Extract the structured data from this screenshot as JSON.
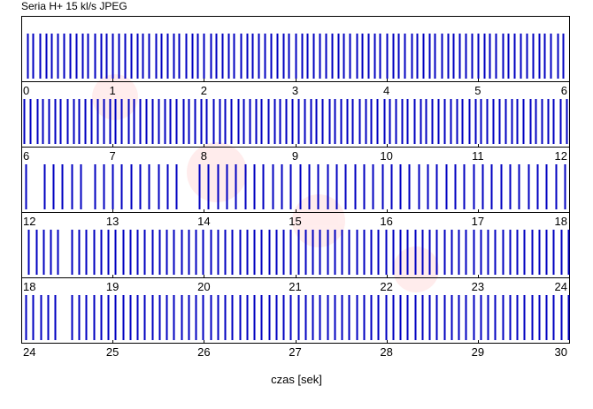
{
  "chart_data": {
    "type": "bar",
    "title": "Seria H+ 15 kl/s JPEG",
    "xlabel": "czas [sek]",
    "ylabel": "",
    "grid": false,
    "legend": "none",
    "color": "#0000c0",
    "rows": [
      {
        "xlim": [
          0,
          6
        ],
        "ticks": [
          0,
          1,
          2,
          3,
          4,
          5,
          6
        ],
        "frames": [
          0.07,
          0.13,
          0.2,
          0.27,
          0.33,
          0.4,
          0.47,
          0.53,
          0.6,
          0.67,
          0.73,
          0.8,
          0.87,
          0.93,
          1.0,
          1.07,
          1.13,
          1.2,
          1.27,
          1.33,
          1.4,
          1.47,
          1.53,
          1.6,
          1.67,
          1.73,
          1.8,
          1.87,
          1.93,
          2.0,
          2.07,
          2.13,
          2.2,
          2.27,
          2.33,
          2.4,
          2.47,
          2.53,
          2.6,
          2.67,
          2.73,
          2.8,
          2.87,
          2.93,
          3.0,
          3.07,
          3.13,
          3.2,
          3.27,
          3.33,
          3.4,
          3.47,
          3.53,
          3.6,
          3.67,
          3.73,
          3.8,
          3.87,
          3.93,
          4.0,
          4.07,
          4.13,
          4.2,
          4.27,
          4.33,
          4.4,
          4.47,
          4.53,
          4.6,
          4.67,
          4.73,
          4.8,
          4.87,
          4.93,
          5.0,
          5.07,
          5.13,
          5.2,
          5.27,
          5.33,
          5.4,
          5.47,
          5.53,
          5.6,
          5.67,
          5.73,
          5.8,
          5.87,
          5.93
        ]
      },
      {
        "xlim": [
          6,
          12
        ],
        "ticks": [
          6,
          7,
          8,
          9,
          10,
          11,
          12
        ],
        "frames": [
          6.03,
          6.1,
          6.17,
          6.23,
          6.3,
          6.37,
          6.43,
          6.5,
          6.57,
          6.63,
          6.7,
          6.77,
          6.83,
          6.9,
          6.97,
          7.03,
          7.1,
          7.17,
          7.23,
          7.3,
          7.37,
          7.43,
          7.5,
          7.57,
          7.63,
          7.7,
          7.77,
          7.83,
          7.9,
          7.97,
          8.03,
          8.1,
          8.17,
          8.23,
          8.3,
          8.37,
          8.43,
          8.5,
          8.57,
          8.63,
          8.7,
          8.77,
          8.83,
          8.9,
          8.97,
          9.03,
          9.1,
          9.17,
          9.23,
          9.3,
          9.37,
          9.43,
          9.5,
          9.57,
          9.63,
          9.7,
          9.77,
          9.83,
          9.9,
          9.97,
          10.03,
          10.1,
          10.17,
          10.23,
          10.3,
          10.37,
          10.43,
          10.5,
          10.57,
          10.63,
          10.7,
          10.77,
          10.83,
          10.9,
          10.97,
          11.03,
          11.1,
          11.17,
          11.23,
          11.3,
          11.37,
          11.43,
          11.5,
          11.57,
          11.63,
          11.7,
          11.77,
          11.83,
          11.9,
          11.97
        ]
      },
      {
        "xlim": [
          12,
          18
        ],
        "ticks": [
          12,
          13,
          14,
          15,
          16,
          17,
          18
        ],
        "frames": [
          12.05,
          12.25,
          12.35,
          12.45,
          12.55,
          12.65,
          12.8,
          12.9,
          13.0,
          13.1,
          13.2,
          13.3,
          13.4,
          13.5,
          13.6,
          13.7,
          13.95,
          14.05,
          14.15,
          14.25,
          14.35,
          14.45,
          14.55,
          14.65,
          14.75,
          14.85,
          14.95,
          15.05,
          15.15,
          15.25,
          15.35,
          15.45,
          15.55,
          15.65,
          15.75,
          15.85,
          15.95,
          16.05,
          16.15,
          16.25,
          16.35,
          16.45,
          16.55,
          16.65,
          16.75,
          16.85,
          16.95,
          17.05,
          17.15,
          17.25,
          17.35,
          17.45,
          17.55,
          17.65,
          17.75,
          17.85,
          17.95
        ]
      },
      {
        "xlim": [
          18,
          24
        ],
        "ticks": [
          18,
          19,
          20,
          21,
          22,
          23,
          24
        ],
        "frames": [
          18.08,
          18.16,
          18.24,
          18.32,
          18.4,
          18.55,
          18.63,
          18.71,
          18.79,
          18.87,
          18.95,
          19.03,
          19.11,
          19.19,
          19.27,
          19.35,
          19.43,
          19.51,
          19.59,
          19.67,
          19.75,
          19.83,
          19.91,
          19.99,
          20.07,
          20.15,
          20.23,
          20.31,
          20.39,
          20.47,
          20.55,
          20.63,
          20.71,
          20.79,
          20.87,
          20.95,
          21.03,
          21.11,
          21.19,
          21.27,
          21.35,
          21.43,
          21.51,
          21.59,
          21.67,
          21.75,
          21.83,
          21.91,
          21.99,
          22.07,
          22.15,
          22.23,
          22.31,
          22.39,
          22.47,
          22.55,
          22.63,
          22.71,
          22.79,
          22.87,
          22.95,
          23.03,
          23.11,
          23.19,
          23.27,
          23.35,
          23.43,
          23.51,
          23.59,
          23.67,
          23.75,
          23.83,
          23.91,
          23.99
        ]
      },
      {
        "xlim": [
          24,
          30
        ],
        "ticks": [
          24,
          25,
          26,
          27,
          28,
          29,
          30
        ],
        "frames": [
          24.05,
          24.13,
          24.21,
          24.29,
          24.37,
          24.55,
          24.63,
          24.71,
          24.79,
          24.87,
          24.95,
          25.03,
          25.11,
          25.19,
          25.27,
          25.35,
          25.43,
          25.51,
          25.59,
          25.67,
          25.75,
          25.83,
          25.91,
          25.99,
          26.07,
          26.15,
          26.23,
          26.31,
          26.39,
          26.47,
          26.55,
          26.63,
          26.71,
          26.79,
          26.87,
          26.95,
          27.03,
          27.11,
          27.19,
          27.27,
          27.35,
          27.43,
          27.51,
          27.59,
          27.67,
          27.75,
          27.83,
          27.91,
          27.99,
          28.07,
          28.15,
          28.23,
          28.31,
          28.39,
          28.47,
          28.55,
          28.63,
          28.71,
          28.79,
          28.87,
          28.95,
          29.03,
          29.11,
          29.19,
          29.27,
          29.35,
          29.43,
          29.51,
          29.59,
          29.67,
          29.75,
          29.83,
          29.91,
          29.99
        ]
      }
    ]
  }
}
